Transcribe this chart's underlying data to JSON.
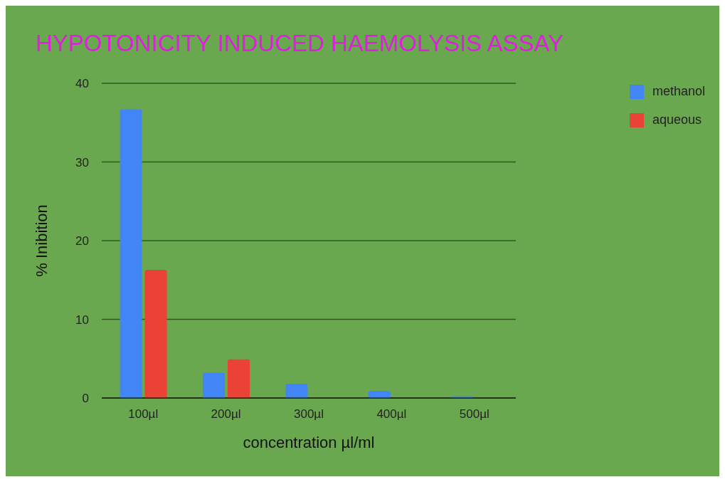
{
  "chart_data": {
    "type": "bar",
    "title": "HYPOTONICITY INDUCED HAEMOLYSIS ASSAY",
    "xlabel": "concentration µl/ml",
    "ylabel": "% Inibition",
    "categories": [
      "100µl",
      "200µl",
      "300µl",
      "400µl",
      "500µl"
    ],
    "series": [
      {
        "name": "methanol",
        "color": "#4285f4",
        "values": [
          36.7,
          3.2,
          1.8,
          0.9,
          0.2
        ]
      },
      {
        "name": "aqueous",
        "color": "#ea4335",
        "values": [
          16.3,
          4.9,
          0,
          0,
          0
        ]
      }
    ],
    "ylim": [
      0,
      40
    ],
    "yticks": [
      0,
      10,
      20,
      30,
      40
    ],
    "grid": "y",
    "legend": "top right"
  }
}
